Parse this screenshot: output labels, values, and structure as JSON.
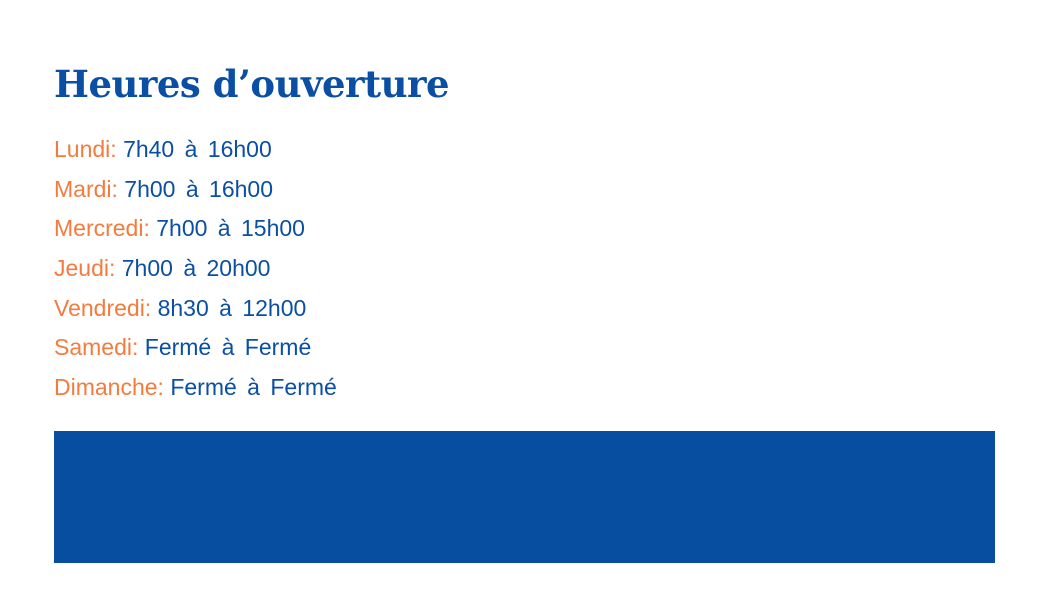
{
  "title": "Heures d’ouverture",
  "colors": {
    "title": "#0a4fa3",
    "day": "#f47b3e",
    "time": "#0a4fa3",
    "banner": "#074ea1"
  },
  "hours": [
    {
      "day": "Lundi:",
      "time": "7h40 à 16h00"
    },
    {
      "day": "Mardi:",
      "time": "7h00 à 16h00"
    },
    {
      "day": "Mercredi:",
      "time": "7h00 à 15h00"
    },
    {
      "day": "Jeudi:",
      "time": "7h00 à 20h00"
    },
    {
      "day": "Vendredi:",
      "time": "8h30 à 12h00"
    },
    {
      "day": "Samedi:",
      "time": "Fermé à Fermé"
    },
    {
      "day": "Dimanche:",
      "time": "Fermé à Fermé"
    }
  ]
}
